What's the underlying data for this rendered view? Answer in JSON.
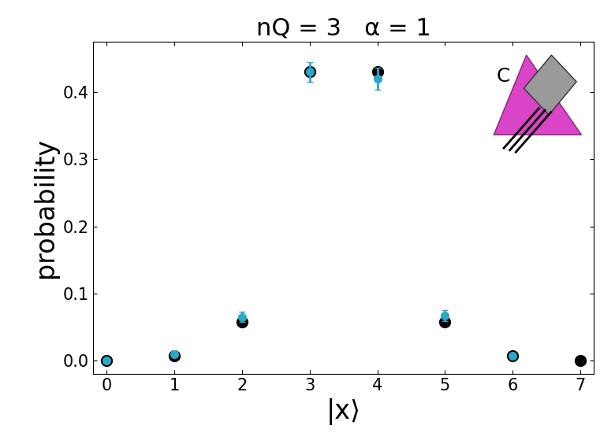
{
  "chart_data": {
    "type": "scatter",
    "title": "nQ = 3   α = 1",
    "x_label": "|x⟩",
    "y_label": "probability",
    "x": [
      0,
      1,
      2,
      3,
      4,
      5,
      6,
      7
    ],
    "series": [
      {
        "color": "#000000",
        "marker": "circle",
        "values": [
          0.0,
          0.007,
          0.057,
          0.43,
          0.43,
          0.057,
          0.007,
          0.0
        ]
      },
      {
        "color": "#2aa7c9",
        "marker": "circle",
        "values": [
          0.0,
          0.01,
          0.065,
          0.43,
          0.42,
          0.067,
          0.007,
          null
        ],
        "errors": [
          0.003,
          0.004,
          0.008,
          0.015,
          0.016,
          0.008,
          0.003,
          null
        ]
      }
    ],
    "annotations": [
      "C"
    ],
    "xlim": [
      -0.2,
      7.2
    ],
    "xticks": [
      0,
      1,
      2,
      3,
      4,
      5,
      6,
      7
    ],
    "ylim": [
      -0.02,
      0.475
    ],
    "yticks": [
      0.0,
      0.1,
      0.2,
      0.3,
      0.4
    ],
    "grid": false
  }
}
